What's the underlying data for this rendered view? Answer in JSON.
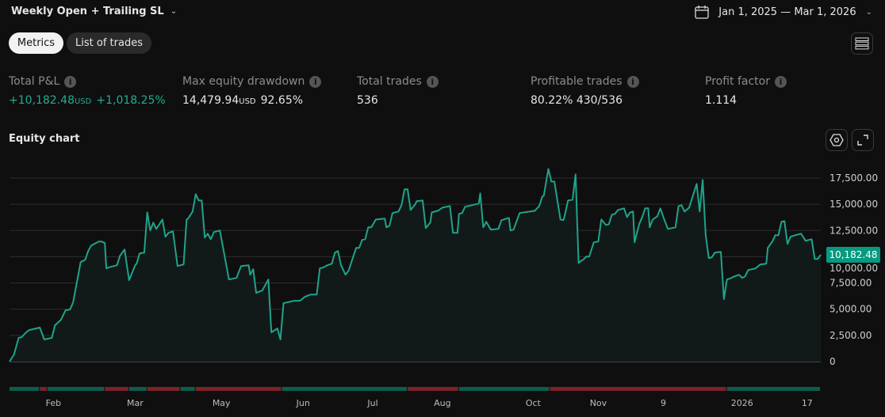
{
  "header": {
    "strategy_title": "Weekly Open + Trailing SL",
    "date_range": "Jan 1, 2025 — Mar 1, 2026",
    "calendar_icon": "calendar-icon"
  },
  "tabs": [
    {
      "label": "Metrics",
      "active": true
    },
    {
      "label": "List of trades",
      "active": false
    }
  ],
  "metrics": [
    {
      "label": "Total P&L",
      "value": "+10,182.48",
      "unit": "USD",
      "secondary": "+1,018.25%",
      "positive": true
    },
    {
      "label": "Max equity drawdown",
      "value": "14,479.94",
      "unit": "USD",
      "secondary": "92.65%"
    },
    {
      "label": "Total trades",
      "value": "536"
    },
    {
      "label": "Profitable trades",
      "value": "80.22%",
      "secondary": "430/536"
    },
    {
      "label": "Profit factor",
      "value": "1.114"
    }
  ],
  "equity": {
    "title": "Equity chart"
  },
  "colors": {
    "line": "#1fa38b",
    "fill": "#121a19",
    "badge": "#089981",
    "profit_period": "#0e5c4e",
    "loss_period": "#7a2228",
    "grid": "#2e2e2e"
  },
  "chart_data": {
    "type": "area",
    "title": "Equity chart",
    "xlabel": "",
    "ylabel": "",
    "x_unit": "trade number",
    "ylim": [
      0,
      17500
    ],
    "grid": true,
    "y_ticks": [
      "0",
      "2,500.00",
      "5,000.00",
      "7,500.00",
      "10,000.00",
      "12,500.00",
      "15,000.00",
      "17,500.00"
    ],
    "y_tick_values": [
      0,
      2500,
      5000,
      7500,
      10000,
      12500,
      15000,
      17500
    ],
    "x_ticks": [
      {
        "label": "Feb",
        "x": 29
      },
      {
        "label": "Mar",
        "x": 83
      },
      {
        "label": "May",
        "x": 140
      },
      {
        "label": "Jun",
        "x": 194
      },
      {
        "label": "Jul",
        "x": 240
      },
      {
        "label": "Aug",
        "x": 286
      },
      {
        "label": "Oct",
        "x": 346
      },
      {
        "label": "Nov",
        "x": 389
      },
      {
        "label": "9",
        "x": 432
      },
      {
        "label": "2026",
        "x": 484
      },
      {
        "label": "17",
        "x": 527
      }
    ],
    "last_value_label": "10,182.48",
    "last_value": 10182.48,
    "points": [
      [
        0,
        0
      ],
      [
        3,
        680
      ],
      [
        6,
        2260
      ],
      [
        8,
        2330
      ],
      [
        11,
        2790
      ],
      [
        13,
        3010
      ],
      [
        20,
        3240
      ],
      [
        23,
        2110
      ],
      [
        28,
        2260
      ],
      [
        30,
        3460
      ],
      [
        34,
        3990
      ],
      [
        37,
        4890
      ],
      [
        40,
        4970
      ],
      [
        42,
        5650
      ],
      [
        47,
        9490
      ],
      [
        50,
        9710
      ],
      [
        52,
        10540
      ],
      [
        54,
        11070
      ],
      [
        59,
        11450
      ],
      [
        61,
        11450
      ],
      [
        63,
        11300
      ],
      [
        64,
        8890
      ],
      [
        67,
        9040
      ],
      [
        71,
        9190
      ],
      [
        73,
        10090
      ],
      [
        76,
        10690
      ],
      [
        79,
        7760
      ],
      [
        83,
        9190
      ],
      [
        84,
        9340
      ],
      [
        86,
        10320
      ],
      [
        89,
        10390
      ],
      [
        91,
        14230
      ],
      [
        93,
        12500
      ],
      [
        95,
        13250
      ],
      [
        97,
        12650
      ],
      [
        101,
        13550
      ],
      [
        103,
        11900
      ],
      [
        105,
        12270
      ],
      [
        108,
        12420
      ],
      [
        111,
        9110
      ],
      [
        115,
        9260
      ],
      [
        117,
        13550
      ],
      [
        118,
        13630
      ],
      [
        121,
        14310
      ],
      [
        123,
        15960
      ],
      [
        125,
        15360
      ],
      [
        127,
        15360
      ],
      [
        129,
        11820
      ],
      [
        131,
        12200
      ],
      [
        133,
        11670
      ],
      [
        135,
        12350
      ],
      [
        139,
        12500
      ],
      [
        145,
        7830
      ],
      [
        150,
        7980
      ],
      [
        153,
        9110
      ],
      [
        158,
        9190
      ],
      [
        159,
        8280
      ],
      [
        161,
        8810
      ],
      [
        163,
        6550
      ],
      [
        167,
        6780
      ],
      [
        171,
        7830
      ],
      [
        173,
        2790
      ],
      [
        177,
        3160
      ],
      [
        179,
        2110
      ],
      [
        181,
        5570
      ],
      [
        188,
        5800
      ],
      [
        192,
        5800
      ],
      [
        195,
        6170
      ],
      [
        199,
        6400
      ],
      [
        203,
        6400
      ],
      [
        205,
        8890
      ],
      [
        207,
        8960
      ],
      [
        210,
        9190
      ],
      [
        213,
        9340
      ],
      [
        215,
        10390
      ],
      [
        217,
        10540
      ],
      [
        219,
        9190
      ],
      [
        222,
        8280
      ],
      [
        224,
        8660
      ],
      [
        229,
        10840
      ],
      [
        231,
        10840
      ],
      [
        233,
        11600
      ],
      [
        235,
        11670
      ],
      [
        237,
        12800
      ],
      [
        239,
        12800
      ],
      [
        242,
        13550
      ],
      [
        248,
        13630
      ],
      [
        249,
        12800
      ],
      [
        251,
        12950
      ],
      [
        253,
        14160
      ],
      [
        257,
        14310
      ],
      [
        259,
        14910
      ],
      [
        261,
        16420
      ],
      [
        263,
        16420
      ],
      [
        265,
        14460
      ],
      [
        268,
        14980
      ],
      [
        269,
        15290
      ],
      [
        273,
        15360
      ],
      [
        275,
        12730
      ],
      [
        278,
        13250
      ],
      [
        279,
        14230
      ],
      [
        283,
        14380
      ],
      [
        286,
        14680
      ],
      [
        291,
        14830
      ],
      [
        293,
        12270
      ],
      [
        296,
        12270
      ],
      [
        297,
        14080
      ],
      [
        299,
        14160
      ],
      [
        301,
        14760
      ],
      [
        310,
        15060
      ],
      [
        311,
        16040
      ],
      [
        313,
        12800
      ],
      [
        315,
        13330
      ],
      [
        318,
        12580
      ],
      [
        323,
        12650
      ],
      [
        325,
        13480
      ],
      [
        330,
        13700
      ],
      [
        331,
        12500
      ],
      [
        333,
        12580
      ],
      [
        337,
        14160
      ],
      [
        347,
        14380
      ],
      [
        350,
        14830
      ],
      [
        352,
        15740
      ],
      [
        353,
        15810
      ],
      [
        356,
        18370
      ],
      [
        358,
        17170
      ],
      [
        360,
        17170
      ],
      [
        364,
        13550
      ],
      [
        366,
        13480
      ],
      [
        367,
        14010
      ],
      [
        369,
        15360
      ],
      [
        372,
        15440
      ],
      [
        374,
        17850
      ],
      [
        376,
        9410
      ],
      [
        378,
        9640
      ],
      [
        379,
        9710
      ],
      [
        381,
        10010
      ],
      [
        383,
        10010
      ],
      [
        386,
        11370
      ],
      [
        389,
        11450
      ],
      [
        391,
        13550
      ],
      [
        394,
        13030
      ],
      [
        396,
        13100
      ],
      [
        398,
        14010
      ],
      [
        400,
        14080
      ],
      [
        402,
        14460
      ],
      [
        406,
        14610
      ],
      [
        408,
        13780
      ],
      [
        410,
        14230
      ],
      [
        412,
        14310
      ],
      [
        413,
        11370
      ],
      [
        416,
        13100
      ],
      [
        418,
        13780
      ],
      [
        420,
        14610
      ],
      [
        422,
        14610
      ],
      [
        423,
        12800
      ],
      [
        425,
        13550
      ],
      [
        428,
        13860
      ],
      [
        430,
        14610
      ],
      [
        432,
        13780
      ],
      [
        435,
        12650
      ],
      [
        440,
        12800
      ],
      [
        442,
        14830
      ],
      [
        444,
        14910
      ],
      [
        446,
        14310
      ],
      [
        449,
        14680
      ],
      [
        454,
        16940
      ],
      [
        456,
        14310
      ],
      [
        458,
        17320
      ],
      [
        460,
        12050
      ],
      [
        462,
        9860
      ],
      [
        464,
        9940
      ],
      [
        466,
        10390
      ],
      [
        470,
        10470
      ],
      [
        472,
        5950
      ],
      [
        474,
        7830
      ],
      [
        476,
        7910
      ],
      [
        478,
        8060
      ],
      [
        482,
        8280
      ],
      [
        484,
        7980
      ],
      [
        486,
        8130
      ],
      [
        488,
        8730
      ],
      [
        493,
        8890
      ],
      [
        496,
        9260
      ],
      [
        500,
        9340
      ],
      [
        501,
        10840
      ],
      [
        504,
        11450
      ],
      [
        506,
        12050
      ],
      [
        508,
        12050
      ],
      [
        510,
        13330
      ],
      [
        512,
        13400
      ],
      [
        514,
        11220
      ],
      [
        516,
        11900
      ],
      [
        519,
        12050
      ],
      [
        523,
        12200
      ],
      [
        526,
        11520
      ],
      [
        530,
        11670
      ],
      [
        532,
        9790
      ],
      [
        534,
        9790
      ],
      [
        536,
        10182.48
      ]
    ],
    "period_segments": [
      {
        "from": 0,
        "to": 20,
        "result": "profit"
      },
      {
        "from": 20,
        "to": 25,
        "result": "loss"
      },
      {
        "from": 25,
        "to": 63,
        "result": "profit"
      },
      {
        "from": 63,
        "to": 79,
        "result": "loss"
      },
      {
        "from": 79,
        "to": 91,
        "result": "profit"
      },
      {
        "from": 91,
        "to": 113,
        "result": "loss"
      },
      {
        "from": 113,
        "to": 123,
        "result": "profit"
      },
      {
        "from": 123,
        "to": 180,
        "result": "loss"
      },
      {
        "from": 180,
        "to": 263,
        "result": "profit"
      },
      {
        "from": 263,
        "to": 297,
        "result": "loss"
      },
      {
        "from": 297,
        "to": 357,
        "result": "profit"
      },
      {
        "from": 357,
        "to": 474,
        "result": "loss"
      },
      {
        "from": 474,
        "to": 536,
        "result": "profit"
      }
    ],
    "x_range": [
      0,
      536
    ]
  }
}
